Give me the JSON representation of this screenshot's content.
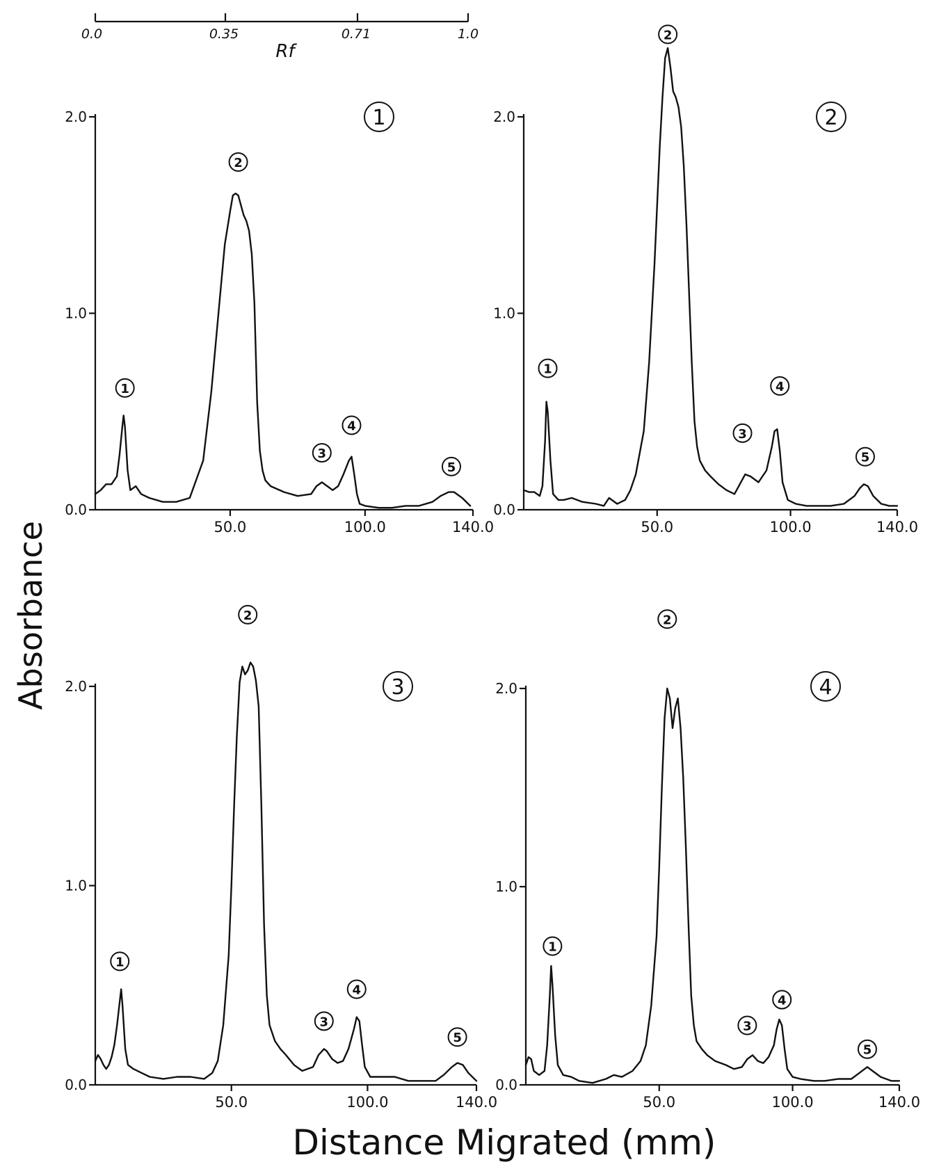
{
  "figure": {
    "ylabel": "Absorbance",
    "xlabel": "Distance Migrated (mm)",
    "rf_scale": {
      "label": "Rf",
      "ticks": [
        {
          "value": 0.0,
          "label": "0.0"
        },
        {
          "value": 0.35,
          "label": "0.35"
        },
        {
          "value": 0.71,
          "label": "0.71"
        },
        {
          "value": 1.0,
          "label": "1.0"
        }
      ]
    }
  },
  "chart_data": [
    {
      "type": "line",
      "panel_label": "1",
      "xlim": [
        0,
        140
      ],
      "ylim": [
        0,
        2.0
      ],
      "xticks": [
        {
          "value": 50,
          "label": "50.0"
        },
        {
          "value": 100,
          "label": "100.0"
        },
        {
          "value": 140,
          "label": "140.0"
        }
      ],
      "yticks": [
        {
          "value": 0,
          "label": "0.0"
        },
        {
          "value": 1.0,
          "label": "1.0"
        },
        {
          "value": 2.0,
          "label": "2.0"
        }
      ],
      "peak_labels": [
        {
          "label": "1",
          "x": 11,
          "y": 0.62
        },
        {
          "label": "2",
          "x": 53,
          "y": 1.77
        },
        {
          "label": "3",
          "x": 84,
          "y": 0.29
        },
        {
          "label": "4",
          "x": 95,
          "y": 0.43
        },
        {
          "label": "5",
          "x": 132,
          "y": 0.22
        }
      ],
      "x": [
        0,
        2,
        4,
        6,
        8,
        9,
        10,
        10.5,
        11,
        12,
        13,
        15,
        17,
        20,
        25,
        30,
        35,
        40,
        43,
        46,
        48,
        50,
        51,
        52,
        53,
        54,
        55,
        56,
        57,
        58,
        59,
        60,
        61,
        62,
        63,
        65,
        70,
        75,
        80,
        82,
        84,
        86,
        88,
        90,
        92,
        94,
        95,
        96,
        97,
        98,
        100,
        105,
        110,
        115,
        120,
        125,
        128,
        131,
        133,
        136,
        139
      ],
      "y": [
        0.08,
        0.1,
        0.13,
        0.13,
        0.17,
        0.28,
        0.42,
        0.48,
        0.42,
        0.2,
        0.1,
        0.12,
        0.08,
        0.06,
        0.04,
        0.04,
        0.06,
        0.25,
        0.6,
        1.05,
        1.35,
        1.52,
        1.6,
        1.61,
        1.6,
        1.55,
        1.5,
        1.47,
        1.42,
        1.3,
        1.05,
        0.55,
        0.3,
        0.2,
        0.15,
        0.12,
        0.09,
        0.07,
        0.08,
        0.12,
        0.14,
        0.12,
        0.1,
        0.12,
        0.18,
        0.25,
        0.27,
        0.18,
        0.08,
        0.03,
        0.02,
        0.01,
        0.01,
        0.02,
        0.02,
        0.04,
        0.07,
        0.09,
        0.09,
        0.06,
        0.02
      ]
    },
    {
      "type": "line",
      "panel_label": "2",
      "xlim": [
        0,
        140
      ],
      "ylim": [
        0,
        2.0
      ],
      "xticks": [
        {
          "value": 50,
          "label": "50.0"
        },
        {
          "value": 100,
          "label": "100.0"
        },
        {
          "value": 140,
          "label": "140.0"
        }
      ],
      "yticks": [
        {
          "value": 0,
          "label": "0.0"
        },
        {
          "value": 1.0,
          "label": "1.0"
        },
        {
          "value": 2.0,
          "label": "2.0"
        }
      ],
      "peak_labels": [
        {
          "label": "1",
          "x": 9,
          "y": 0.72
        },
        {
          "label": "2",
          "x": 54,
          "y": 2.42
        },
        {
          "label": "3",
          "x": 82,
          "y": 0.39
        },
        {
          "label": "4",
          "x": 96,
          "y": 0.63
        },
        {
          "label": "5",
          "x": 128,
          "y": 0.27
        }
      ],
      "x": [
        0,
        2,
        4,
        6,
        7,
        8,
        8.5,
        9,
        10,
        11,
        13,
        15,
        18,
        22,
        27,
        30,
        32,
        35,
        38,
        40,
        42,
        45,
        47,
        49,
        51,
        52,
        53,
        54,
        55,
        56,
        57,
        58,
        59,
        60,
        61,
        62,
        63,
        64,
        65,
        66,
        68,
        70,
        73,
        76,
        79,
        81,
        83,
        85,
        88,
        91,
        93,
        94,
        95,
        96,
        97,
        99,
        102,
        106,
        110,
        115,
        120,
        124,
        126,
        127.5,
        129,
        131,
        134,
        137,
        140
      ],
      "y": [
        0.1,
        0.09,
        0.09,
        0.07,
        0.12,
        0.35,
        0.55,
        0.5,
        0.25,
        0.08,
        0.05,
        0.05,
        0.06,
        0.04,
        0.03,
        0.02,
        0.06,
        0.03,
        0.05,
        0.1,
        0.18,
        0.4,
        0.75,
        1.25,
        1.85,
        2.1,
        2.3,
        2.35,
        2.25,
        2.13,
        2.1,
        2.05,
        1.95,
        1.75,
        1.45,
        1.1,
        0.75,
        0.45,
        0.32,
        0.25,
        0.2,
        0.17,
        0.13,
        0.1,
        0.08,
        0.13,
        0.18,
        0.17,
        0.14,
        0.2,
        0.32,
        0.4,
        0.41,
        0.3,
        0.14,
        0.05,
        0.03,
        0.02,
        0.02,
        0.02,
        0.03,
        0.07,
        0.11,
        0.13,
        0.12,
        0.07,
        0.03,
        0.02,
        0.02
      ]
    },
    {
      "type": "line",
      "panel_label": "3",
      "xlim": [
        0,
        140
      ],
      "ylim": [
        0,
        2.0
      ],
      "xticks": [
        {
          "value": 50,
          "label": "50.0"
        },
        {
          "value": 100,
          "label": "100.0"
        },
        {
          "value": 140,
          "label": "140.0"
        }
      ],
      "yticks": [
        {
          "value": 0,
          "label": "0.0"
        },
        {
          "value": 1.0,
          "label": "1.0"
        },
        {
          "value": 2.0,
          "label": "2.0"
        }
      ],
      "peak_labels": [
        {
          "label": "1",
          "x": 9,
          "y": 0.62
        },
        {
          "label": "2",
          "x": 56,
          "y": 2.36
        },
        {
          "label": "3",
          "x": 84,
          "y": 0.32
        },
        {
          "label": "4",
          "x": 96,
          "y": 0.48
        },
        {
          "label": "5",
          "x": 133,
          "y": 0.24
        }
      ],
      "x": [
        0,
        1,
        2,
        3,
        4,
        5,
        6,
        7,
        8,
        9,
        9.5,
        10,
        11,
        12,
        14,
        17,
        20,
        25,
        30,
        35,
        40,
        43,
        45,
        47,
        49,
        50,
        51,
        52,
        53,
        54,
        55,
        56,
        57,
        58,
        59,
        60,
        61,
        62,
        63,
        64,
        66,
        68,
        70,
        73,
        76,
        80,
        82,
        84,
        85,
        87,
        89,
        91,
        93,
        95,
        96,
        97,
        98,
        99,
        101,
        105,
        110,
        115,
        120,
        125,
        128,
        131,
        133,
        135,
        137,
        140
      ],
      "y": [
        0.12,
        0.15,
        0.13,
        0.1,
        0.08,
        0.1,
        0.14,
        0.2,
        0.3,
        0.42,
        0.48,
        0.4,
        0.18,
        0.1,
        0.08,
        0.06,
        0.04,
        0.03,
        0.04,
        0.04,
        0.03,
        0.06,
        0.12,
        0.3,
        0.65,
        1.0,
        1.4,
        1.75,
        2.02,
        2.1,
        2.06,
        2.08,
        2.12,
        2.1,
        2.03,
        1.9,
        1.4,
        0.8,
        0.45,
        0.3,
        0.22,
        0.18,
        0.15,
        0.1,
        0.07,
        0.09,
        0.15,
        0.18,
        0.17,
        0.13,
        0.11,
        0.12,
        0.18,
        0.28,
        0.34,
        0.32,
        0.2,
        0.09,
        0.04,
        0.04,
        0.04,
        0.02,
        0.02,
        0.02,
        0.05,
        0.09,
        0.11,
        0.1,
        0.06,
        0.02
      ]
    },
    {
      "type": "line",
      "panel_label": "4",
      "xlim": [
        0,
        140
      ],
      "ylim": [
        0,
        2.0
      ],
      "xticks": [
        {
          "value": 50,
          "label": "50.0"
        },
        {
          "value": 100,
          "label": "100.0"
        },
        {
          "value": 140,
          "label": "140.0"
        }
      ],
      "yticks": [
        {
          "value": 0,
          "label": "0.0"
        },
        {
          "value": 1.0,
          "label": "1.0"
        },
        {
          "value": 2.0,
          "label": "2.0"
        }
      ],
      "peak_labels": [
        {
          "label": "1",
          "x": 10,
          "y": 0.7
        },
        {
          "label": "2",
          "x": 53,
          "y": 2.35
        },
        {
          "label": "3",
          "x": 83,
          "y": 0.3
        },
        {
          "label": "4",
          "x": 96,
          "y": 0.43
        },
        {
          "label": "5",
          "x": 128,
          "y": 0.18
        }
      ],
      "x": [
        0,
        1,
        2,
        3,
        5,
        7,
        8,
        9,
        9.5,
        10,
        11,
        12,
        14,
        17,
        20,
        25,
        30,
        33,
        36,
        40,
        43,
        45,
        47,
        49,
        50,
        51,
        52,
        53,
        54,
        55,
        56,
        57,
        58,
        59,
        60,
        61,
        62,
        63,
        64,
        66,
        68,
        71,
        75,
        78,
        81,
        83,
        85,
        87,
        89,
        91,
        93,
        94,
        95,
        96,
        97,
        98,
        100,
        103,
        108,
        112,
        117,
        122,
        125,
        127,
        128,
        130,
        133,
        137,
        140
      ],
      "y": [
        0.1,
        0.14,
        0.13,
        0.07,
        0.05,
        0.07,
        0.2,
        0.45,
        0.6,
        0.5,
        0.25,
        0.1,
        0.05,
        0.04,
        0.02,
        0.01,
        0.03,
        0.05,
        0.04,
        0.07,
        0.12,
        0.2,
        0.4,
        0.75,
        1.1,
        1.5,
        1.85,
        2.0,
        1.95,
        1.8,
        1.9,
        1.95,
        1.8,
        1.55,
        1.2,
        0.8,
        0.45,
        0.3,
        0.22,
        0.18,
        0.15,
        0.12,
        0.1,
        0.08,
        0.09,
        0.13,
        0.15,
        0.12,
        0.11,
        0.14,
        0.2,
        0.28,
        0.33,
        0.3,
        0.18,
        0.08,
        0.04,
        0.03,
        0.02,
        0.02,
        0.03,
        0.03,
        0.06,
        0.08,
        0.09,
        0.07,
        0.04,
        0.02,
        0.02
      ]
    }
  ]
}
